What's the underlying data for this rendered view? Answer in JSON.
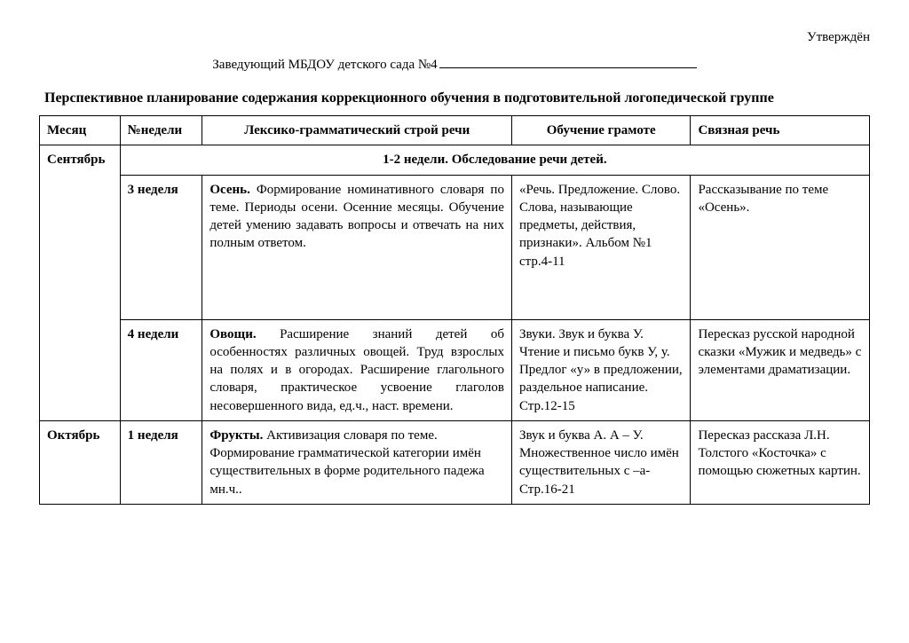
{
  "approved": "Утверждён",
  "head_prefix": "Заведующий МБДОУ детского сада  №4",
  "title": "Перспективное планирование содержания коррекционного обучения в подготовительной логопедической группе",
  "columns": {
    "c1": "Месяц",
    "c2": "№недели",
    "c3": "Лексико-грамматический строй  речи",
    "c4": "Обучение грамоте",
    "c5": "Связная речь"
  },
  "rows": {
    "r1_month": "Сентябрь",
    "r1_band": "1-2 недели. Обследование речи детей.",
    "r2_week": "3 неделя",
    "r2_c3_bold": "Осень.",
    "r2_c3_rest": " Формирование номинативного словаря по теме. Периоды осени. Осенние месяцы. Обучение детей умению задавать вопросы и отвечать на них полным ответом.",
    "r2_c4": "«Речь. Предложение. Слово. Слова, называющие предметы, действия, признаки». Альбом №1 стр.4-11",
    "r2_c5": " Рассказывание по теме «Осень».",
    "r3_week": "4 недели",
    "r3_c3_bold": "Овощи.",
    "r3_c3_rest": " Расширение знаний детей об особенностях различных овощей. Труд взрослых на полях и в огородах. Расширение глагольного словаря, практическое усвоение глаголов несовершенного вида, ед.ч., наст. времени.",
    "r3_c4": "Звуки. Звук и буква У. Чтение и письмо букв У, у. Предлог «у» в предложении, раздельное написание. Стр.12-15",
    "r3_c5": " Пересказ русской народной сказки «Мужик и медведь» с элементами драматизации.",
    "r4_month": "Октябрь",
    "r4_week": "1 неделя",
    "r4_c3_bold": " Фрукты.",
    "r4_c3_rest": " Активизация словаря по теме. Формирование грамматической категории имён существительных в форме родительного падежа мн.ч..",
    "r4_c4": " Звук  и буква А.    А – У. Множественное число имён существительных с –а-  Стр.16-21",
    "r4_c5": " Пересказ  рассказа Л.Н. Толстого «Косточка»  с помощью сюжетных картин."
  }
}
